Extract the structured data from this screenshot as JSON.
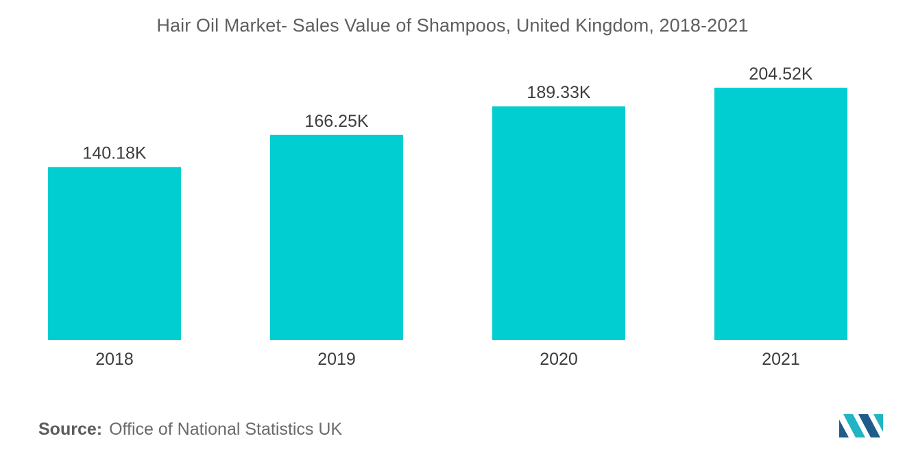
{
  "chart_data": {
    "type": "bar",
    "title": "Hair Oil Market- Sales Value of Shampoos, United Kingdom, 2018-2021",
    "categories": [
      "2018",
      "2019",
      "2020",
      "2021"
    ],
    "values": [
      140.18,
      166.25,
      189.33,
      204.52
    ],
    "data_labels": [
      "140.18K",
      "166.25K",
      "189.33K",
      "204.52K"
    ],
    "ylim": [
      0,
      210
    ],
    "grid": false,
    "legend": "none",
    "bar_color": "#00ced1"
  },
  "source": {
    "label": "Source:",
    "text": "Office of National Statistics UK"
  },
  "colors": {
    "logo_dark": "#1f5c8c",
    "logo_light": "#1fb5c4"
  }
}
